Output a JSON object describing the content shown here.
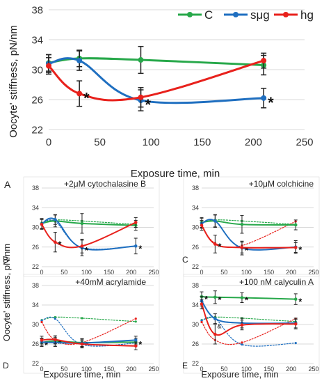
{
  "colors": {
    "C": "#27a84a",
    "sug": "#1f6fc0",
    "hg": "#e8211c"
  },
  "shared": {
    "ylabel": "Oocyte' stiffness, pN/nm",
    "xlabel": "Exposure time, min"
  },
  "chart_data": [
    {
      "type": "line",
      "panel_label": "A",
      "title": "",
      "xlabel": "Exposure time, min",
      "ylabel": "Oocyte' stiffness, pN/nm",
      "xlim": [
        0,
        250
      ],
      "ylim": [
        22,
        38
      ],
      "xticks": [
        "0",
        "50",
        "100",
        "150",
        "200",
        "250"
      ],
      "yticks": [
        "22",
        "26",
        "30",
        "34",
        "38"
      ],
      "legend": "top-right",
      "series": [
        {
          "name": "C",
          "color": "#27a84a",
          "dashed": false,
          "points": [
            {
              "x": 0,
              "y": 30.9,
              "err": 1.1
            },
            {
              "x": 30,
              "y": 31.5,
              "err": 1.1,
              "star": false
            },
            {
              "x": 90,
              "y": 31.3,
              "err": 1.8
            },
            {
              "x": 210,
              "y": 30.6,
              "err": 1.3
            }
          ]
        },
        {
          "name": "sμg",
          "color": "#1f6fc0",
          "dashed": false,
          "points": [
            {
              "x": 0,
              "y": 30.8,
              "err": 1.2
            },
            {
              "x": 30,
              "y": 31.2,
              "err": 1.3
            },
            {
              "x": 90,
              "y": 25.9,
              "err": 1.4,
              "star": true
            },
            {
              "x": 210,
              "y": 26.2,
              "err": 1.3,
              "star": true
            }
          ]
        },
        {
          "name": "hg",
          "color": "#e8211c",
          "dashed": false,
          "points": [
            {
              "x": 0,
              "y": 30.5,
              "err": 1.1
            },
            {
              "x": 30,
              "y": 26.8,
              "err": 1.7,
              "star": true
            },
            {
              "x": 90,
              "y": 26.3,
              "err": 1.3
            },
            {
              "x": 210,
              "y": 31.2,
              "err": 1.0
            }
          ]
        }
      ]
    },
    {
      "type": "line",
      "panel_label": "B",
      "title": "+2μM cytochalasine B",
      "xlim": [
        0,
        250
      ],
      "ylim": [
        22,
        38
      ],
      "xticks": [
        "0",
        "50",
        "100",
        "150",
        "200",
        "250"
      ],
      "yticks": [
        "22",
        "26",
        "30",
        "34",
        "38"
      ],
      "series": [
        {
          "name": "C",
          "color": "#27a84a",
          "dashed": true,
          "points": [
            {
              "x": 0,
              "y": 30.9
            },
            {
              "x": 30,
              "y": 31.5
            },
            {
              "x": 90,
              "y": 31.3
            },
            {
              "x": 210,
              "y": 30.6
            }
          ]
        },
        {
          "name": "sμg",
          "color": "#1f6fc0",
          "dashed": true,
          "points": [
            {
              "x": 0,
              "y": 30.8
            },
            {
              "x": 30,
              "y": 31.2
            },
            {
              "x": 90,
              "y": 25.9
            },
            {
              "x": 210,
              "y": 26.2
            }
          ]
        },
        {
          "name": "C",
          "color": "#27a84a",
          "dashed": false,
          "points": [
            {
              "x": 0,
              "y": 30.8,
              "err": 1.0
            },
            {
              "x": 30,
              "y": 31.3,
              "err": 1.2
            },
            {
              "x": 90,
              "y": 30.8,
              "err": 2.0
            },
            {
              "x": 210,
              "y": 30.4,
              "err": 1.0
            }
          ]
        },
        {
          "name": "sμg",
          "color": "#1f6fc0",
          "dashed": false,
          "points": [
            {
              "x": 0,
              "y": 30.7,
              "err": 1.0
            },
            {
              "x": 30,
              "y": 31.6,
              "err": 1.0
            },
            {
              "x": 90,
              "y": 25.8,
              "err": 1.6,
              "star": true
            },
            {
              "x": 210,
              "y": 26.2,
              "err": 1.6,
              "star": true
            }
          ]
        },
        {
          "name": "hg",
          "color": "#e8211c",
          "dashed": false,
          "points": [
            {
              "x": 0,
              "y": 30.6,
              "err": 1.0
            },
            {
              "x": 30,
              "y": 27.0,
              "err": 2.0,
              "star": true
            },
            {
              "x": 90,
              "y": 26.2,
              "err": 1.4
            },
            {
              "x": 210,
              "y": 31.0,
              "err": 1.0
            }
          ]
        }
      ]
    },
    {
      "type": "line",
      "panel_label": "C",
      "title": "+10μM colchicine",
      "xlim": [
        0,
        250
      ],
      "ylim": [
        22,
        38
      ],
      "xticks": [
        "0",
        "50",
        "100",
        "150",
        "200",
        "250"
      ],
      "yticks": [
        "22",
        "26",
        "30",
        "34",
        "38"
      ],
      "series": [
        {
          "name": "C",
          "color": "#27a84a",
          "dashed": true,
          "points": [
            {
              "x": 0,
              "y": 30.9
            },
            {
              "x": 30,
              "y": 31.5
            },
            {
              "x": 90,
              "y": 31.3
            },
            {
              "x": 210,
              "y": 30.6
            }
          ]
        },
        {
          "name": "hg",
          "color": "#e8211c",
          "dashed": true,
          "points": [
            {
              "x": 0,
              "y": 30.5
            },
            {
              "x": 30,
              "y": 26.8
            },
            {
              "x": 90,
              "y": 26.3
            },
            {
              "x": 210,
              "y": 31.2
            }
          ]
        },
        {
          "name": "C",
          "color": "#27a84a",
          "dashed": false,
          "points": [
            {
              "x": 0,
              "y": 31.0,
              "err": 1.0
            },
            {
              "x": 30,
              "y": 31.3,
              "err": 1.2
            },
            {
              "x": 90,
              "y": 30.6,
              "err": 1.8
            },
            {
              "x": 210,
              "y": 30.5,
              "err": 1.0
            }
          ]
        },
        {
          "name": "sμg",
          "color": "#1f6fc0",
          "dashed": false,
          "points": [
            {
              "x": 0,
              "y": 30.8,
              "err": 1.0
            },
            {
              "x": 30,
              "y": 31.3,
              "err": 1.3
            },
            {
              "x": 90,
              "y": 25.8,
              "err": 1.4,
              "star": true
            },
            {
              "x": 210,
              "y": 26.0,
              "err": 1.3,
              "star": true
            }
          ]
        },
        {
          "name": "hg",
          "color": "#e8211c",
          "dashed": false,
          "points": [
            {
              "x": 0,
              "y": 30.4,
              "err": 1.0
            },
            {
              "x": 30,
              "y": 26.6,
              "err": 1.8,
              "star": true
            },
            {
              "x": 90,
              "y": 25.9,
              "err": 1.1
            },
            {
              "x": 210,
              "y": 25.9,
              "err": 1.0
            }
          ]
        }
      ]
    },
    {
      "type": "line",
      "panel_label": "D",
      "title": "+40mM acrylamide",
      "xlim": [
        0,
        250
      ],
      "ylim": [
        22,
        38
      ],
      "xticks": [
        "0",
        "50",
        "100",
        "150",
        "200",
        "250"
      ],
      "yticks": [
        "22",
        "26",
        "30",
        "34",
        "38"
      ],
      "series": [
        {
          "name": "C",
          "color": "#27a84a",
          "dashed": true,
          "points": [
            {
              "x": 0,
              "y": 30.9
            },
            {
              "x": 30,
              "y": 31.5
            },
            {
              "x": 90,
              "y": 31.3
            },
            {
              "x": 210,
              "y": 30.6
            }
          ]
        },
        {
          "name": "sμg",
          "color": "#1f6fc0",
          "dashed": true,
          "points": [
            {
              "x": 0,
              "y": 30.8
            },
            {
              "x": 30,
              "y": 31.2
            },
            {
              "x": 90,
              "y": 25.9
            },
            {
              "x": 210,
              "y": 26.2
            }
          ]
        },
        {
          "name": "hg",
          "color": "#e8211c",
          "dashed": true,
          "points": [
            {
              "x": 0,
              "y": 30.5
            },
            {
              "x": 30,
              "y": 26.8
            },
            {
              "x": 90,
              "y": 26.3
            },
            {
              "x": 210,
              "y": 31.2
            }
          ]
        },
        {
          "name": "C",
          "color": "#27a84a",
          "dashed": false,
          "points": [
            {
              "x": 0,
              "y": 26.3,
              "err": 0.8,
              "star": true
            },
            {
              "x": 30,
              "y": 26.6,
              "err": 0.8,
              "star": true
            },
            {
              "x": 90,
              "y": 26.3,
              "err": 0.8,
              "star": true
            },
            {
              "x": 210,
              "y": 26.4,
              "err": 0.8,
              "star": true
            }
          ]
        },
        {
          "name": "sμg",
          "color": "#1f6fc0",
          "dashed": false,
          "points": [
            {
              "x": 0,
              "y": 26.4,
              "err": 0.8
            },
            {
              "x": 30,
              "y": 26.3,
              "err": 0.8
            },
            {
              "x": 90,
              "y": 26.2,
              "err": 0.8
            },
            {
              "x": 210,
              "y": 26.8,
              "err": 0.8
            }
          ]
        },
        {
          "name": "hg",
          "color": "#e8211c",
          "dashed": false,
          "points": [
            {
              "x": 0,
              "y": 26.8,
              "err": 0.8
            },
            {
              "x": 30,
              "y": 26.9,
              "err": 0.8
            },
            {
              "x": 90,
              "y": 26.0,
              "err": 0.8
            },
            {
              "x": 210,
              "y": 25.6,
              "err": 0.8
            }
          ]
        }
      ]
    },
    {
      "type": "line",
      "panel_label": "E",
      "title": "+100 nM calyculin A",
      "xlim": [
        0,
        250
      ],
      "ylim": [
        22,
        38
      ],
      "xticks": [
        "0",
        "50",
        "100",
        "150",
        "200",
        "250"
      ],
      "yticks": [
        "22",
        "26",
        "30",
        "34",
        "38"
      ],
      "series": [
        {
          "name": "C",
          "color": "#27a84a",
          "dashed": true,
          "points": [
            {
              "x": 0,
              "y": 30.9
            },
            {
              "x": 30,
              "y": 31.5
            },
            {
              "x": 90,
              "y": 31.3
            },
            {
              "x": 210,
              "y": 30.6
            }
          ]
        },
        {
          "name": "sμg",
          "color": "#1f6fc0",
          "dashed": true,
          "points": [
            {
              "x": 0,
              "y": 30.8
            },
            {
              "x": 30,
              "y": 31.2
            },
            {
              "x": 90,
              "y": 25.9
            },
            {
              "x": 210,
              "y": 26.2
            }
          ]
        },
        {
          "name": "hg",
          "color": "#e8211c",
          "dashed": true,
          "points": [
            {
              "x": 0,
              "y": 30.5
            },
            {
              "x": 30,
              "y": 26.8
            },
            {
              "x": 90,
              "y": 26.3
            },
            {
              "x": 210,
              "y": 31.2
            }
          ]
        },
        {
          "name": "C",
          "color": "#27a84a",
          "dashed": false,
          "points": [
            {
              "x": 0,
              "y": 35.7,
              "err": 1.0,
              "star": true
            },
            {
              "x": 30,
              "y": 35.6,
              "err": 1.3,
              "star": true
            },
            {
              "x": 90,
              "y": 35.5,
              "err": 1.0,
              "star": true
            },
            {
              "x": 210,
              "y": 35.2,
              "err": 1.1,
              "star": true
            }
          ]
        },
        {
          "name": "sμg",
          "color": "#1f6fc0",
          "dashed": false,
          "points": [
            {
              "x": 0,
              "y": 34.8,
              "err": 1.0
            },
            {
              "x": 30,
              "y": 31.2,
              "err": 1.0,
              "mark": "&"
            },
            {
              "x": 90,
              "y": 30.3,
              "err": 1.0
            },
            {
              "x": 210,
              "y": 30.3,
              "err": 1.0
            }
          ]
        },
        {
          "name": "hg",
          "color": "#e8211c",
          "dashed": false,
          "points": [
            {
              "x": 0,
              "y": 34.2,
              "err": 1.0
            },
            {
              "x": 30,
              "y": 28.0,
              "err": 2.0
            },
            {
              "x": 90,
              "y": 29.9,
              "err": 1.0
            },
            {
              "x": 210,
              "y": 30.1,
              "err": 1.0
            }
          ]
        }
      ]
    }
  ]
}
